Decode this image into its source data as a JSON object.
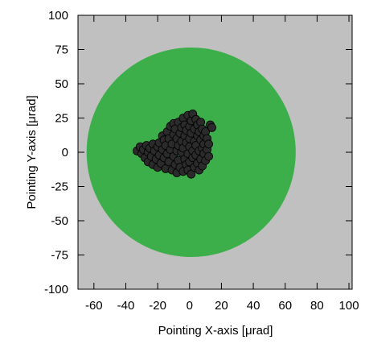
{
  "chart_data": {
    "type": "scatter",
    "title": "",
    "xlabel": "Pointing X-axis [μrad]",
    "ylabel": "Pointing Y-axis [μrad]",
    "xlim": [
      -70,
      102
    ],
    "ylim": [
      -100,
      100
    ],
    "xticks": [
      -60,
      -40,
      -20,
      0,
      20,
      40,
      60,
      80,
      100
    ],
    "yticks": [
      100,
      75,
      50,
      25,
      0,
      -25,
      -50,
      -75,
      -100
    ],
    "grid": false,
    "legend": "none",
    "colors": {
      "plot_background": "#c0c0c0",
      "region": "#3daf4a",
      "points": "#2b2b2b",
      "point_edge": "#000000"
    },
    "region": {
      "shape": "circle",
      "center": [
        1,
        0
      ],
      "radius": 75
    },
    "series": [
      {
        "points": [
          [
            -33,
            1
          ],
          [
            -31,
            4
          ],
          [
            -30,
            -1
          ],
          [
            -29,
            2
          ],
          [
            -28,
            -4
          ],
          [
            -27,
            5
          ],
          [
            -26,
            0
          ],
          [
            -26,
            -7
          ],
          [
            -25,
            3
          ],
          [
            -24,
            -3
          ],
          [
            -23,
            6
          ],
          [
            -23,
            -9
          ],
          [
            -22,
            1
          ],
          [
            -21,
            -5
          ],
          [
            -20,
            4
          ],
          [
            -20,
            -11
          ],
          [
            -19,
            7
          ],
          [
            -19,
            -2
          ],
          [
            -18,
            -8
          ],
          [
            -17,
            2
          ],
          [
            -17,
            12
          ],
          [
            -16,
            -4
          ],
          [
            -16,
            9
          ],
          [
            -15,
            -12
          ],
          [
            -15,
            5
          ],
          [
            -14,
            15
          ],
          [
            -14,
            -1
          ],
          [
            -13,
            -7
          ],
          [
            -13,
            10
          ],
          [
            -12,
            19
          ],
          [
            -12,
            2
          ],
          [
            -11,
            -13
          ],
          [
            -11,
            6
          ],
          [
            -10,
            21
          ],
          [
            -10,
            -3
          ],
          [
            -10,
            13
          ],
          [
            -9,
            17
          ],
          [
            -9,
            -9
          ],
          [
            -8,
            1
          ],
          [
            -8,
            10
          ],
          [
            -8,
            -15
          ],
          [
            -7,
            22
          ],
          [
            -7,
            5
          ],
          [
            -7,
            -6
          ],
          [
            -6,
            14
          ],
          [
            -6,
            -11
          ],
          [
            -5,
            18
          ],
          [
            -5,
            0
          ],
          [
            -5,
            8
          ],
          [
            -4,
            -14
          ],
          [
            -4,
            25
          ],
          [
            -4,
            3
          ],
          [
            -3,
            12
          ],
          [
            -3,
            -5
          ],
          [
            -3,
            20
          ],
          [
            -2,
            -9
          ],
          [
            -2,
            7
          ],
          [
            -2,
            16
          ],
          [
            -1,
            -1
          ],
          [
            -1,
            27
          ],
          [
            -1,
            -13
          ],
          [
            0,
            10
          ],
          [
            0,
            4
          ],
          [
            0,
            19
          ],
          [
            0,
            -7
          ],
          [
            1,
            23
          ],
          [
            1,
            -16
          ],
          [
            1,
            14
          ],
          [
            2,
            1
          ],
          [
            2,
            -4
          ],
          [
            2,
            28
          ],
          [
            3,
            8
          ],
          [
            3,
            -11
          ],
          [
            3,
            17
          ],
          [
            4,
            5
          ],
          [
            4,
            -2
          ],
          [
            4,
            24
          ],
          [
            5,
            12
          ],
          [
            5,
            -8
          ],
          [
            5,
            20
          ],
          [
            6,
            1
          ],
          [
            6,
            -13
          ],
          [
            6,
            15
          ],
          [
            7,
            9
          ],
          [
            7,
            -5
          ],
          [
            7,
            22
          ],
          [
            8,
            3
          ],
          [
            8,
            -10
          ],
          [
            8,
            17
          ],
          [
            9,
            12
          ],
          [
            9,
            -1
          ],
          [
            9,
            6
          ],
          [
            10,
            15
          ],
          [
            10,
            -6
          ],
          [
            11,
            2
          ],
          [
            11,
            10
          ],
          [
            12,
            -3
          ],
          [
            12,
            6
          ],
          [
            13,
            20
          ],
          [
            14,
            18
          ]
        ]
      }
    ]
  }
}
